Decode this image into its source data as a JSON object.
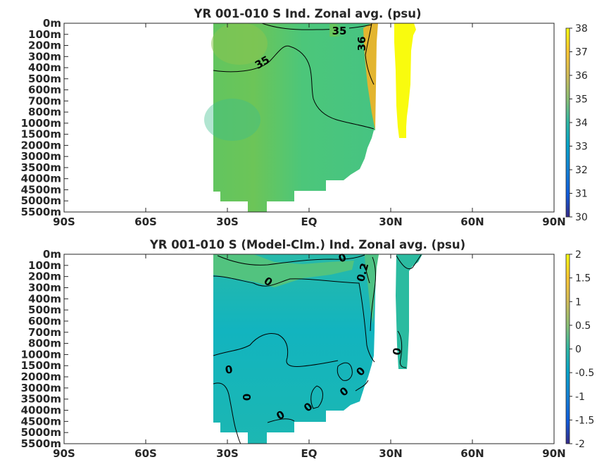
{
  "chart_data": [
    {
      "type": "heatmap",
      "title": "YR 001-010 S Ind. Zonal avg. (psu)",
      "x_ticks": [
        "90S",
        "60S",
        "30S",
        "EQ",
        "30N",
        "60N",
        "90N"
      ],
      "y_ticks": [
        "0m",
        "100m",
        "200m",
        "300m",
        "400m",
        "500m",
        "600m",
        "700m",
        "800m",
        "1000m",
        "1500m",
        "2000m",
        "3000m",
        "3500m",
        "4000m",
        "4500m",
        "5000m",
        "5500m"
      ],
      "xlim": [
        "90S",
        "90N"
      ],
      "ylim": [
        "0m",
        "5500m"
      ],
      "colorbar": {
        "ticks": [
          "30",
          "31",
          "32",
          "33",
          "34",
          "35",
          "36",
          "37",
          "38"
        ],
        "range": [
          30,
          38
        ],
        "colormap": "parula"
      },
      "contour_labels": [
        "35",
        "36",
        "35"
      ],
      "grid": false
    },
    {
      "type": "heatmap",
      "title": "YR 001-010 S (Model-Clm.) Ind. Zonal avg. (psu)",
      "x_ticks": [
        "90S",
        "60S",
        "30S",
        "EQ",
        "30N",
        "60N",
        "90N"
      ],
      "y_ticks": [
        "0m",
        "100m",
        "200m",
        "300m",
        "400m",
        "500m",
        "600m",
        "700m",
        "800m",
        "1000m",
        "1500m",
        "2000m",
        "3000m",
        "3500m",
        "4000m",
        "4500m",
        "5000m",
        "5500m"
      ],
      "xlim": [
        "90S",
        "90N"
      ],
      "ylim": [
        "0m",
        "5500m"
      ],
      "colorbar": {
        "ticks": [
          "2",
          "1.5",
          "1",
          "0.5",
          "0",
          "-0.5",
          "-1",
          "-1.5",
          "-2"
        ],
        "range": [
          -2,
          2
        ],
        "colormap": "parula"
      },
      "contour_labels": [
        "0",
        "0",
        "0.2",
        "0",
        "0",
        "0",
        "0",
        "0",
        "0",
        "0",
        "0"
      ],
      "grid": false
    }
  ],
  "colors": {
    "axis": "#262626",
    "contour": "#000000",
    "top_main": "#4cc67a",
    "top_north": "#5dc863",
    "top_arabian": "#e3b52f",
    "top_redsea": "#f9fb0e",
    "bottom_main": "#1bb7b5",
    "bottom_north": "#2bbba0"
  }
}
